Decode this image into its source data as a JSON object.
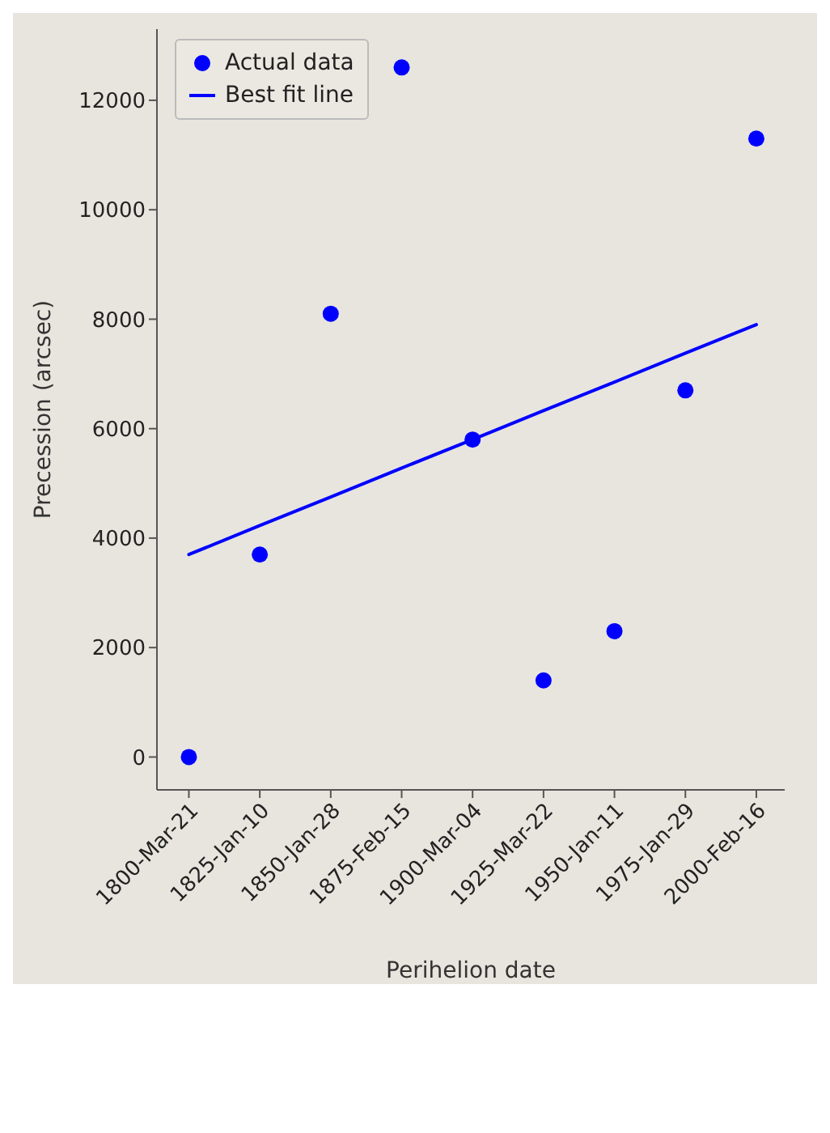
{
  "chart_data": {
    "type": "scatter",
    "xlabel": "Perihelion date",
    "ylabel": "Precession (arcsec)",
    "categories": [
      "1800-Mar-21",
      "1825-Jan-10",
      "1850-Jan-28",
      "1875-Feb-15",
      "1900-Mar-04",
      "1925-Mar-22",
      "1950-Jan-11",
      "1975-Jan-29",
      "2000-Feb-16"
    ],
    "series": [
      {
        "name": "Actual data",
        "color": "#0000ff",
        "marker": "circle",
        "values": [
          0,
          3700,
          8100,
          12600,
          5800,
          1400,
          2300,
          6700,
          11300
        ]
      },
      {
        "name": "Best fit line",
        "type": "line",
        "color": "#0000ff",
        "marker": "none",
        "line_style": "solid",
        "values": [
          3700,
          4230,
          4750,
          5280,
          5800,
          6330,
          6850,
          7380,
          7900
        ]
      }
    ],
    "ylim": [
      -600,
      13300
    ],
    "yticks": [
      0,
      2000,
      4000,
      6000,
      8000,
      10000,
      12000
    ],
    "grid": false,
    "legend": "top left"
  }
}
